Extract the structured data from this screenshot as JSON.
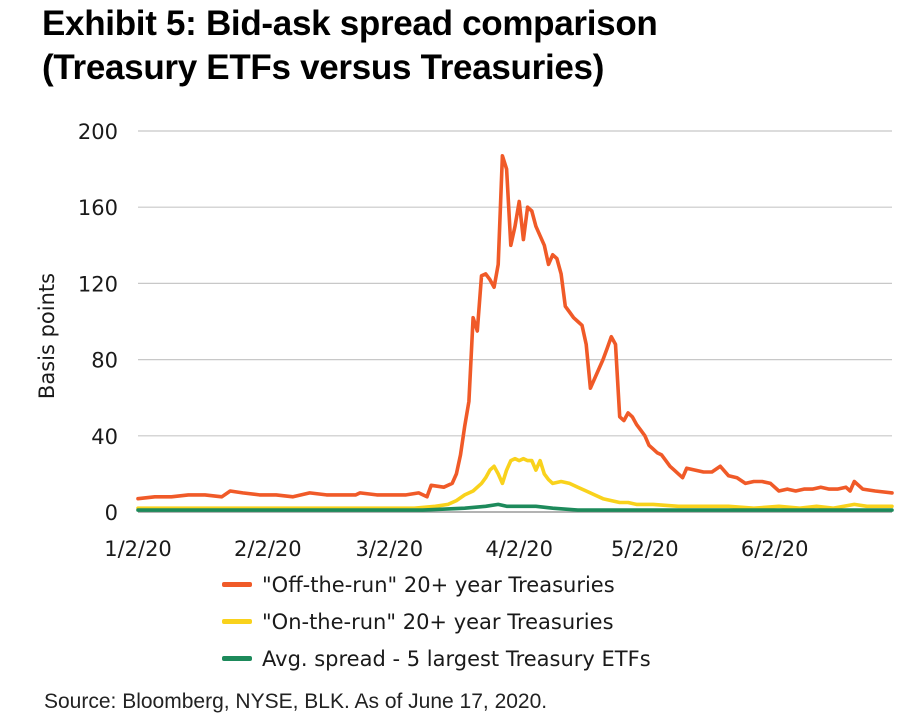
{
  "title": {
    "line1": "Exhibit 5: Bid-ask spread comparison",
    "line2": "(Treasury ETFs versus Treasuries)"
  },
  "source": "Source: Bloomberg, NYSE, BLK. As of June 17, 2020.",
  "chart_data": {
    "type": "line",
    "title": "Exhibit 5: Bid-ask spread comparison (Treasury ETFs versus Treasuries)",
    "ylabel": "Basis points",
    "xlabel": "",
    "ylim": [
      0,
      200
    ],
    "yticks": [
      0,
      40,
      80,
      120,
      160,
      200
    ],
    "xlim": [
      "2020-01-02",
      "2020-06-30"
    ],
    "xticks": [
      {
        "date": "2020-01-02",
        "label": "1/2/20"
      },
      {
        "date": "2020-02-02",
        "label": "2/2/20"
      },
      {
        "date": "2020-03-02",
        "label": "3/2/20"
      },
      {
        "date": "2020-04-02",
        "label": "4/2/20"
      },
      {
        "date": "2020-05-02",
        "label": "5/2/20"
      },
      {
        "date": "2020-06-02",
        "label": "6/2/20"
      }
    ],
    "grid": "horizontal",
    "legend_position": "bottom",
    "series": [
      {
        "name": "\"Off-the-run\" 20+ year Treasuries",
        "color": "#f05a28",
        "points": [
          [
            "2020-01-02",
            7
          ],
          [
            "2020-01-06",
            8
          ],
          [
            "2020-01-10",
            8
          ],
          [
            "2020-01-14",
            9
          ],
          [
            "2020-01-18",
            9
          ],
          [
            "2020-01-22",
            8
          ],
          [
            "2020-01-24",
            11
          ],
          [
            "2020-01-27",
            10
          ],
          [
            "2020-01-31",
            9
          ],
          [
            "2020-02-04",
            9
          ],
          [
            "2020-02-08",
            8
          ],
          [
            "2020-02-12",
            10
          ],
          [
            "2020-02-16",
            9
          ],
          [
            "2020-02-20",
            9
          ],
          [
            "2020-02-23",
            9
          ],
          [
            "2020-02-24",
            10
          ],
          [
            "2020-02-28",
            9
          ],
          [
            "2020-03-03",
            9
          ],
          [
            "2020-03-06",
            9
          ],
          [
            "2020-03-09",
            10
          ],
          [
            "2020-03-11",
            8
          ],
          [
            "2020-03-12",
            14
          ],
          [
            "2020-03-15",
            13
          ],
          [
            "2020-03-17",
            15
          ],
          [
            "2020-03-18",
            20
          ],
          [
            "2020-03-19",
            30
          ],
          [
            "2020-03-20",
            45
          ],
          [
            "2020-03-21",
            58
          ],
          [
            "2020-03-22",
            102
          ],
          [
            "2020-03-23",
            95
          ],
          [
            "2020-03-24",
            124
          ],
          [
            "2020-03-25",
            125
          ],
          [
            "2020-03-26",
            122
          ],
          [
            "2020-03-27",
            118
          ],
          [
            "2020-03-28",
            130
          ],
          [
            "2020-03-29",
            187
          ],
          [
            "2020-03-30",
            180
          ],
          [
            "2020-03-31",
            140
          ],
          [
            "2020-04-01",
            150
          ],
          [
            "2020-04-02",
            163
          ],
          [
            "2020-04-03",
            143
          ],
          [
            "2020-04-04",
            160
          ],
          [
            "2020-04-05",
            158
          ],
          [
            "2020-04-06",
            150
          ],
          [
            "2020-04-07",
            145
          ],
          [
            "2020-04-08",
            140
          ],
          [
            "2020-04-09",
            130
          ],
          [
            "2020-04-10",
            135
          ],
          [
            "2020-04-11",
            133
          ],
          [
            "2020-04-12",
            125
          ],
          [
            "2020-04-13",
            108
          ],
          [
            "2020-04-14",
            105
          ],
          [
            "2020-04-15",
            102
          ],
          [
            "2020-04-16",
            100
          ],
          [
            "2020-04-17",
            98
          ],
          [
            "2020-04-18",
            88
          ],
          [
            "2020-04-19",
            65
          ],
          [
            "2020-04-20",
            70
          ],
          [
            "2020-04-21",
            75
          ],
          [
            "2020-04-22",
            80
          ],
          [
            "2020-04-23",
            86
          ],
          [
            "2020-04-24",
            92
          ],
          [
            "2020-04-25",
            88
          ],
          [
            "2020-04-26",
            50
          ],
          [
            "2020-04-27",
            48
          ],
          [
            "2020-04-28",
            52
          ],
          [
            "2020-04-29",
            50
          ],
          [
            "2020-04-30",
            46
          ],
          [
            "2020-05-01",
            43
          ],
          [
            "2020-05-02",
            40
          ],
          [
            "2020-05-03",
            35
          ],
          [
            "2020-05-04",
            33
          ],
          [
            "2020-05-05",
            31
          ],
          [
            "2020-05-06",
            30
          ],
          [
            "2020-05-07",
            27
          ],
          [
            "2020-05-08",
            24
          ],
          [
            "2020-05-09",
            22
          ],
          [
            "2020-05-10",
            20
          ],
          [
            "2020-05-11",
            18
          ],
          [
            "2020-05-12",
            23
          ],
          [
            "2020-05-14",
            22
          ],
          [
            "2020-05-16",
            21
          ],
          [
            "2020-05-18",
            21
          ],
          [
            "2020-05-20",
            24
          ],
          [
            "2020-05-22",
            19
          ],
          [
            "2020-05-24",
            18
          ],
          [
            "2020-05-26",
            15
          ],
          [
            "2020-05-28",
            16
          ],
          [
            "2020-05-30",
            16
          ],
          [
            "2020-06-01",
            15
          ],
          [
            "2020-06-03",
            11
          ],
          [
            "2020-06-05",
            12
          ],
          [
            "2020-06-07",
            11
          ],
          [
            "2020-06-09",
            12
          ],
          [
            "2020-06-11",
            12
          ],
          [
            "2020-06-13",
            13
          ],
          [
            "2020-06-15",
            12
          ],
          [
            "2020-06-17",
            12
          ],
          [
            "2020-06-19",
            13
          ],
          [
            "2020-06-20",
            11
          ],
          [
            "2020-06-21",
            16
          ],
          [
            "2020-06-23",
            12
          ],
          [
            "2020-06-26",
            11
          ],
          [
            "2020-06-30",
            10
          ]
        ]
      },
      {
        "name": "\"On-the-run\" 20+ year Treasuries",
        "color": "#f9d21c",
        "points": [
          [
            "2020-01-02",
            2
          ],
          [
            "2020-01-20",
            2
          ],
          [
            "2020-02-08",
            2
          ],
          [
            "2020-02-25",
            2
          ],
          [
            "2020-03-08",
            2
          ],
          [
            "2020-03-13",
            3
          ],
          [
            "2020-03-16",
            4
          ],
          [
            "2020-03-18",
            6
          ],
          [
            "2020-03-20",
            9
          ],
          [
            "2020-03-22",
            11
          ],
          [
            "2020-03-24",
            15
          ],
          [
            "2020-03-25",
            18
          ],
          [
            "2020-03-26",
            22
          ],
          [
            "2020-03-27",
            24
          ],
          [
            "2020-03-28",
            20
          ],
          [
            "2020-03-29",
            15
          ],
          [
            "2020-03-30",
            22
          ],
          [
            "2020-03-31",
            27
          ],
          [
            "2020-04-01",
            28
          ],
          [
            "2020-04-02",
            27
          ],
          [
            "2020-04-03",
            28
          ],
          [
            "2020-04-04",
            27
          ],
          [
            "2020-04-05",
            27
          ],
          [
            "2020-04-06",
            22
          ],
          [
            "2020-04-07",
            27
          ],
          [
            "2020-04-08",
            20
          ],
          [
            "2020-04-09",
            17
          ],
          [
            "2020-04-10",
            15
          ],
          [
            "2020-04-12",
            16
          ],
          [
            "2020-04-14",
            15
          ],
          [
            "2020-04-16",
            13
          ],
          [
            "2020-04-18",
            11
          ],
          [
            "2020-04-20",
            9
          ],
          [
            "2020-04-22",
            7
          ],
          [
            "2020-04-24",
            6
          ],
          [
            "2020-04-26",
            5
          ],
          [
            "2020-04-28",
            5
          ],
          [
            "2020-04-30",
            4
          ],
          [
            "2020-05-04",
            4
          ],
          [
            "2020-05-10",
            3
          ],
          [
            "2020-05-16",
            3
          ],
          [
            "2020-05-22",
            3
          ],
          [
            "2020-05-28",
            2
          ],
          [
            "2020-06-03",
            3
          ],
          [
            "2020-06-08",
            2
          ],
          [
            "2020-06-12",
            3
          ],
          [
            "2020-06-16",
            2
          ],
          [
            "2020-06-21",
            4
          ],
          [
            "2020-06-24",
            3
          ],
          [
            "2020-06-30",
            3
          ]
        ]
      },
      {
        "name": "Avg. spread - 5 largest Treasury ETFs",
        "color": "#1d8a5b",
        "points": [
          [
            "2020-01-02",
            1
          ],
          [
            "2020-02-15",
            1
          ],
          [
            "2020-03-10",
            1
          ],
          [
            "2020-03-20",
            2
          ],
          [
            "2020-03-25",
            3
          ],
          [
            "2020-03-28",
            4
          ],
          [
            "2020-03-30",
            3
          ],
          [
            "2020-04-02",
            3
          ],
          [
            "2020-04-06",
            3
          ],
          [
            "2020-04-10",
            2
          ],
          [
            "2020-04-16",
            1
          ],
          [
            "2020-05-01",
            1
          ],
          [
            "2020-06-30",
            1
          ]
        ]
      }
    ]
  }
}
